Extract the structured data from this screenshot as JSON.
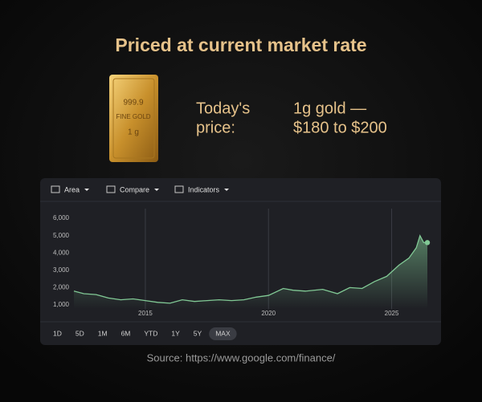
{
  "header": {
    "title": "Priced at current market rate"
  },
  "gold_bar": {
    "lines": [
      "999.9",
      "FINE GOLD",
      "1 g"
    ]
  },
  "price": {
    "label": [
      "Today's",
      "price:"
    ],
    "value": [
      "1g gold —",
      "$180 to $200"
    ]
  },
  "toolbar": {
    "items": [
      "Area",
      "Compare",
      "Indicators"
    ]
  },
  "chart_data": {
    "type": "area",
    "x": [
      2012.1,
      2012.5,
      2013.0,
      2013.5,
      2014.0,
      2014.5,
      2015.0,
      2015.5,
      2016.0,
      2016.5,
      2017.0,
      2017.5,
      2018.0,
      2018.5,
      2019.0,
      2019.5,
      2020.0,
      2020.6,
      2021.0,
      2021.5,
      2022.2,
      2022.8,
      2023.3,
      2023.8,
      2024.3,
      2024.8,
      2025.3,
      2025.7,
      2026.0,
      2026.15,
      2026.3,
      2026.45
    ],
    "series": [
      {
        "color": "#81c995",
        "values": [
          1800,
          1650,
          1600,
          1400,
          1300,
          1350,
          1250,
          1150,
          1100,
          1300,
          1200,
          1250,
          1300,
          1250,
          1300,
          1450,
          1550,
          1950,
          1850,
          1800,
          1900,
          1650,
          2000,
          1950,
          2350,
          2650,
          3300,
          3700,
          4300,
          5000,
          4600,
          4600
        ]
      }
    ],
    "xlim": [
      2012.1,
      2026.45
    ],
    "xticks": [
      2015,
      2020,
      2025
    ],
    "ylim": [
      770,
      6560
    ],
    "yticks": [
      {
        "value": 1000,
        "label": "1,000"
      },
      {
        "value": 2000,
        "label": "2,000"
      },
      {
        "value": 3000,
        "label": "3,000"
      },
      {
        "value": 4000,
        "label": "4,000"
      },
      {
        "value": 5000,
        "label": "5,000"
      },
      {
        "value": 6000,
        "label": "6,000"
      }
    ],
    "grid": "x"
  },
  "ranges": {
    "items": [
      "1D",
      "5D",
      "1M",
      "6M",
      "YTD",
      "1Y",
      "5Y",
      "MAX"
    ],
    "active": "MAX"
  },
  "source": "Source: https://www.google.com/finance/"
}
